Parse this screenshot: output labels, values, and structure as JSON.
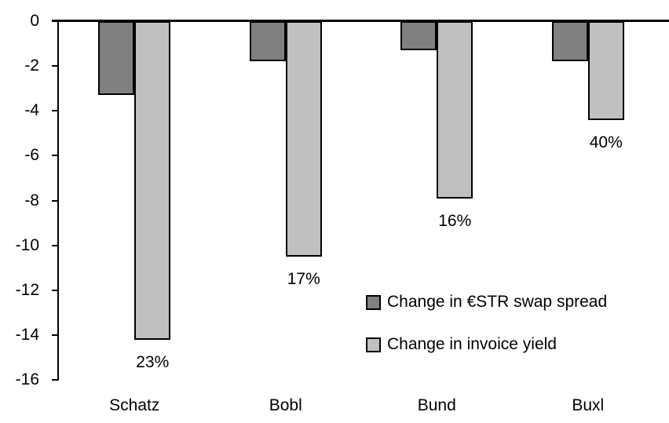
{
  "chart_data": {
    "type": "bar",
    "title": "",
    "xlabel": "",
    "ylabel": "",
    "categories": [
      "Schatz",
      "Bobl",
      "Bund",
      "Buxl"
    ],
    "series": [
      {
        "name": "Change in €STR swap spread",
        "color": "#808080",
        "values": [
          -3.3,
          -1.8,
          -1.3,
          -1.8
        ]
      },
      {
        "name": "Change in invoice yield",
        "color": "#c0c0c0",
        "values": [
          -14.2,
          -10.5,
          -7.9,
          -4.4
        ],
        "data_labels": [
          "23%",
          "17%",
          "16%",
          "40%"
        ]
      }
    ],
    "ylim": [
      -16,
      0
    ],
    "y_ticks": [
      0,
      -2,
      -4,
      -6,
      -8,
      -10,
      -12,
      -14,
      -16
    ],
    "grid": false,
    "legend_position": "inside-right",
    "bar_outline_color": "#000000",
    "axis_color": "#000000",
    "background_color": "#ffffff",
    "text_color": "#000000"
  }
}
